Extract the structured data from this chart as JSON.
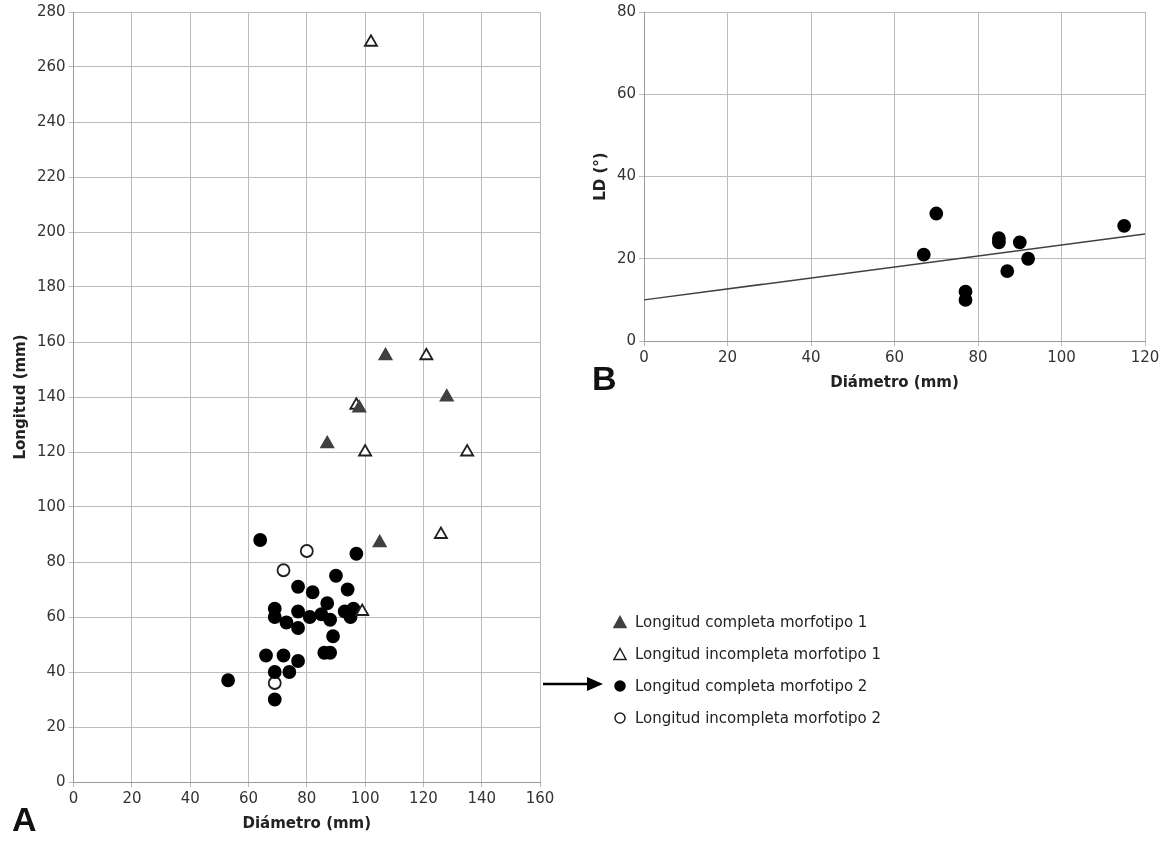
{
  "chart_data": [
    {
      "type": "scatter",
      "xlabel": "Diámetro (mm)",
      "ylabel": "Longitud (mm)",
      "xlim": [
        0,
        160
      ],
      "xticks": [
        0,
        20,
        40,
        60,
        80,
        100,
        120,
        140,
        160
      ],
      "ylim": [
        0,
        280
      ],
      "yticks": [
        0,
        20,
        40,
        60,
        80,
        100,
        120,
        140,
        160,
        180,
        200,
        220,
        240,
        260,
        280
      ],
      "grid": true,
      "legend": "right",
      "annotations": [
        "A"
      ],
      "series": [
        {
          "name": "Longitud completa morfotipo 1",
          "color": "#404040",
          "marker": "triangle",
          "x": [
            87,
            107,
            98,
            128,
            105
          ],
          "values": [
            123,
            155,
            136,
            140,
            87
          ]
        },
        {
          "name": "Longitud incompleta morfotipo 1",
          "color": "#ffffff",
          "marker": "triangle",
          "x": [
            102,
            121,
            97,
            100,
            135,
            126,
            99
          ],
          "values": [
            269,
            155,
            137,
            120,
            120,
            90,
            62
          ]
        },
        {
          "name": "Longitud completa morfotipo 2",
          "color": "#000000",
          "marker": "circle",
          "x": [
            64,
            97,
            90,
            77,
            82,
            94,
            87,
            69,
            77,
            69,
            81,
            85,
            88,
            93,
            95,
            96,
            73,
            77,
            89,
            66,
            72,
            86,
            88,
            77,
            53,
            69,
            74,
            69
          ],
          "values": [
            88,
            83,
            75,
            71,
            69,
            70,
            65,
            63,
            62,
            60,
            60,
            61,
            59,
            62,
            60,
            63,
            58,
            56,
            53,
            46,
            46,
            47,
            47,
            44,
            37,
            40,
            40,
            30
          ]
        },
        {
          "name": "Longitud incompleta morfotipo 2",
          "color": "#ffffff",
          "marker": "circle",
          "x": [
            80,
            72,
            69
          ],
          "values": [
            84,
            77,
            36
          ]
        }
      ]
    },
    {
      "type": "scatter",
      "xlabel": "Diámetro (mm)",
      "ylabel": "LD (°)",
      "xlim": [
        0,
        120
      ],
      "xticks": [
        0,
        20,
        40,
        60,
        80,
        100,
        120
      ],
      "ylim": [
        0,
        80
      ],
      "yticks": [
        0,
        20,
        40,
        60,
        80
      ],
      "grid": true,
      "annotations": [
        "B"
      ],
      "series": [
        {
          "color": "#000000",
          "marker": "circle",
          "x": [
            67,
            70,
            77,
            77,
            85,
            85,
            90,
            92,
            87,
            115
          ],
          "values": [
            21,
            31,
            12,
            10,
            25,
            24,
            24,
            20,
            17,
            28
          ]
        },
        {
          "type": "line",
          "color": "#404040",
          "marker": "none",
          "x": [
            0,
            120
          ],
          "values": [
            10,
            26
          ]
        }
      ]
    }
  ]
}
